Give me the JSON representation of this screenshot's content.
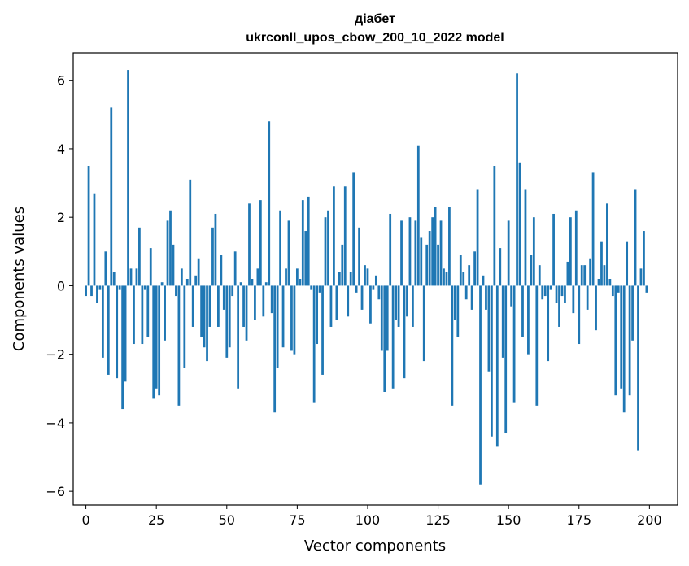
{
  "chart_data": {
    "type": "bar",
    "title_line1": "діабет",
    "title_line2": "ukrconll_upos_cbow_200_10_2022 model",
    "xlabel": "Vector components",
    "ylabel": "Components values",
    "xlim": [
      -4.5,
      210
    ],
    "ylim": [
      -6.4,
      6.8
    ],
    "xticks": [
      0,
      25,
      50,
      75,
      100,
      125,
      150,
      175,
      200
    ],
    "yticks": [
      -6,
      -4,
      -2,
      0,
      2,
      4,
      6
    ],
    "ytick_labels": [
      "−6",
      "−4",
      "−2",
      "0",
      "2",
      "4",
      "6"
    ],
    "bar_color": "#1f77b4",
    "grid": false,
    "x": [
      0,
      1,
      2,
      3,
      4,
      5,
      6,
      7,
      8,
      9,
      10,
      11,
      12,
      13,
      14,
      15,
      16,
      17,
      18,
      19,
      20,
      21,
      22,
      23,
      24,
      25,
      26,
      27,
      28,
      29,
      30,
      31,
      32,
      33,
      34,
      35,
      36,
      37,
      38,
      39,
      40,
      41,
      42,
      43,
      44,
      45,
      46,
      47,
      48,
      49,
      50,
      51,
      52,
      53,
      54,
      55,
      56,
      57,
      58,
      59,
      60,
      61,
      62,
      63,
      64,
      65,
      66,
      67,
      68,
      69,
      70,
      71,
      72,
      73,
      74,
      75,
      76,
      77,
      78,
      79,
      80,
      81,
      82,
      83,
      84,
      85,
      86,
      87,
      88,
      89,
      90,
      91,
      92,
      93,
      94,
      95,
      96,
      97,
      98,
      99,
      100,
      101,
      102,
      103,
      104,
      105,
      106,
      107,
      108,
      109,
      110,
      111,
      112,
      113,
      114,
      115,
      116,
      117,
      118,
      119,
      120,
      121,
      122,
      123,
      124,
      125,
      126,
      127,
      128,
      129,
      130,
      131,
      132,
      133,
      134,
      135,
      136,
      137,
      138,
      139,
      140,
      141,
      142,
      143,
      144,
      145,
      146,
      147,
      148,
      149,
      150,
      151,
      152,
      153,
      154,
      155,
      156,
      157,
      158,
      159,
      160,
      161,
      162,
      163,
      164,
      165,
      166,
      167,
      168,
      169,
      170,
      171,
      172,
      173,
      174,
      175,
      176,
      177,
      178,
      179,
      180,
      181,
      182,
      183,
      184,
      185,
      186,
      187,
      188,
      189,
      190,
      191,
      192,
      193,
      194,
      195,
      196,
      197,
      198,
      199
    ],
    "values": [
      -0.3,
      3.5,
      -0.3,
      2.7,
      -0.5,
      -0.1,
      -2.1,
      1.0,
      -2.6,
      5.2,
      0.4,
      -2.7,
      -0.1,
      -3.6,
      -2.8,
      6.3,
      0.5,
      -1.7,
      0.5,
      1.7,
      -1.7,
      -0.1,
      -1.5,
      1.1,
      -3.3,
      -3.0,
      -3.2,
      0.1,
      -1.6,
      1.9,
      2.2,
      1.2,
      -0.3,
      -3.5,
      0.5,
      -2.4,
      0.2,
      3.1,
      -1.2,
      0.3,
      0.8,
      -1.5,
      -1.8,
      -2.2,
      -1.2,
      1.7,
      2.1,
      -1.2,
      0.9,
      -0.7,
      -2.1,
      -1.8,
      -0.3,
      1.0,
      -3.0,
      0.1,
      -1.2,
      -1.6,
      2.4,
      0.2,
      -1.0,
      0.5,
      2.5,
      -0.9,
      0.1,
      4.8,
      -0.8,
      -3.7,
      -2.4,
      2.2,
      -1.8,
      0.5,
      1.9,
      -1.9,
      -2.0,
      0.5,
      0.2,
      2.5,
      1.6,
      2.6,
      -0.1,
      -3.4,
      -1.7,
      -0.2,
      -2.6,
      2.0,
      2.2,
      -1.2,
      2.9,
      -1.0,
      0.4,
      1.2,
      2.9,
      -0.9,
      0.4,
      3.3,
      -0.2,
      1.7,
      -0.7,
      0.6,
      0.5,
      -1.1,
      -0.1,
      0.3,
      -0.4,
      -1.9,
      -3.1,
      -1.9,
      2.1,
      -3.0,
      -1.0,
      -1.2,
      1.9,
      -2.7,
      -0.9,
      2.0,
      -1.2,
      1.9,
      4.1,
      1.4,
      -2.2,
      1.2,
      1.6,
      2.0,
      2.3,
      1.2,
      1.9,
      0.5,
      0.4,
      2.3,
      -3.5,
      -1.0,
      -1.5,
      0.9,
      0.4,
      -0.4,
      0.6,
      -0.7,
      1.0,
      2.8,
      -5.8,
      0.3,
      -0.7,
      -2.5,
      -4.4,
      3.5,
      -4.7,
      1.1,
      -2.1,
      -4.3,
      1.9,
      -0.6,
      -3.4,
      6.2,
      3.6,
      -1.5,
      2.8,
      -2.0,
      0.9,
      2.0,
      -3.5,
      0.6,
      -0.4,
      -0.3,
      -2.2,
      -0.1,
      2.1,
      -0.5,
      -1.2,
      -0.3,
      -0.5,
      0.7,
      2.0,
      -0.8,
      2.2,
      -1.7,
      0.6,
      0.6,
      -0.7,
      0.8,
      3.3,
      -1.3,
      0.2,
      1.3,
      0.6,
      2.4,
      0.2,
      -0.3,
      -3.2,
      -0.2,
      -3.0,
      -3.7,
      1.3,
      -3.2,
      -1.6,
      2.8,
      -4.8,
      0.5,
      1.6,
      -0.2
    ]
  }
}
